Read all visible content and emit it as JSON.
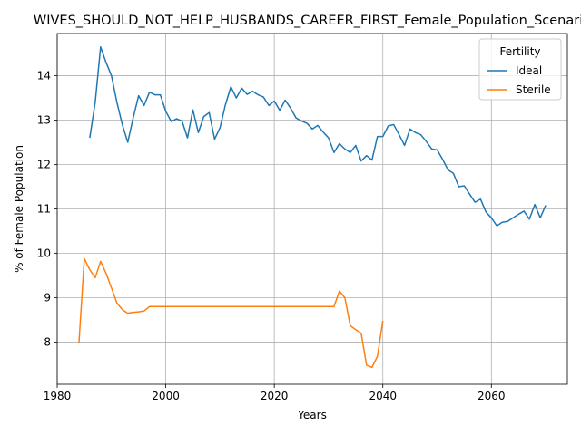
{
  "chart_data": {
    "type": "line",
    "title": "WIVES_SHOULD_NOT_HELP_HUSBANDS_CAREER_FIRST_Female_Population_Scenario",
    "xlabel": "Years",
    "ylabel": "% of Female Population",
    "xlim": [
      1980,
      2074
    ],
    "ylim": [
      7.05,
      14.95
    ],
    "xticks": [
      1980,
      2000,
      2020,
      2040,
      2060
    ],
    "yticks": [
      8,
      9,
      10,
      11,
      12,
      13,
      14
    ],
    "grid": true,
    "legend": {
      "title": "Fertility",
      "placement": "top-right"
    },
    "series": [
      {
        "name": "Ideal",
        "color": "#1f77b4",
        "x": [
          1986,
          1987,
          1988,
          1989,
          1990,
          1991,
          1992,
          1993,
          1994,
          1995,
          1996,
          1997,
          1998,
          1999,
          2000,
          2001,
          2002,
          2003,
          2004,
          2005,
          2006,
          2007,
          2008,
          2009,
          2010,
          2011,
          2012,
          2013,
          2014,
          2015,
          2016,
          2017,
          2018,
          2019,
          2020,
          2021,
          2022,
          2023,
          2024,
          2025,
          2026,
          2027,
          2028,
          2029,
          2030,
          2031,
          2032,
          2033,
          2034,
          2035,
          2036,
          2037,
          2038,
          2039,
          2040,
          2041,
          2042,
          2043,
          2044,
          2045,
          2046,
          2047,
          2048,
          2049,
          2050,
          2051,
          2052,
          2053,
          2054,
          2055,
          2056,
          2057,
          2058,
          2059,
          2060,
          2061,
          2062,
          2063,
          2064,
          2065,
          2066,
          2067,
          2068,
          2069,
          2070
        ],
        "values": [
          12.6,
          13.4,
          14.65,
          14.3,
          14.0,
          13.4,
          12.9,
          12.5,
          13.05,
          13.55,
          13.33,
          13.63,
          13.57,
          13.57,
          13.2,
          12.97,
          13.03,
          12.98,
          12.6,
          13.23,
          12.72,
          13.08,
          13.17,
          12.57,
          12.83,
          13.35,
          13.75,
          13.5,
          13.72,
          13.58,
          13.65,
          13.57,
          13.52,
          13.33,
          13.43,
          13.22,
          13.45,
          13.27,
          13.05,
          12.98,
          12.93,
          12.8,
          12.88,
          12.73,
          12.6,
          12.27,
          12.47,
          12.35,
          12.27,
          12.43,
          12.08,
          12.2,
          12.1,
          12.63,
          12.63,
          12.87,
          12.9,
          12.67,
          12.43,
          12.8,
          12.72,
          12.67,
          12.52,
          12.35,
          12.33,
          12.12,
          11.88,
          11.8,
          11.5,
          11.52,
          11.33,
          11.15,
          11.22,
          10.93,
          10.8,
          10.62,
          10.7,
          10.72,
          10.8,
          10.88,
          10.95,
          10.77,
          11.1,
          10.8,
          11.08
        ]
      },
      {
        "name": "Sterile",
        "color": "#ff7f0e",
        "x": [
          1984,
          1985,
          1986,
          1987,
          1988,
          1989,
          1990,
          1991,
          1992,
          1993,
          1994,
          1995,
          1996,
          1997,
          1998,
          1999,
          2000,
          2001,
          2002,
          2003,
          2004,
          2005,
          2006,
          2007,
          2008,
          2009,
          2010,
          2011,
          2012,
          2013,
          2014,
          2015,
          2016,
          2017,
          2018,
          2019,
          2020,
          2021,
          2022,
          2023,
          2024,
          2025,
          2026,
          2027,
          2028,
          2029,
          2030,
          2031,
          2032,
          2033,
          2034,
          2035,
          2036,
          2037,
          2038,
          2039,
          2040
        ],
        "values": [
          7.97,
          9.88,
          9.63,
          9.45,
          9.82,
          9.55,
          9.22,
          8.88,
          8.73,
          8.65,
          8.67,
          8.68,
          8.7,
          8.8,
          8.8,
          8.8,
          8.8,
          8.8,
          8.8,
          8.8,
          8.8,
          8.8,
          8.8,
          8.8,
          8.8,
          8.8,
          8.8,
          8.8,
          8.8,
          8.8,
          8.8,
          8.8,
          8.8,
          8.8,
          8.8,
          8.8,
          8.8,
          8.8,
          8.8,
          8.8,
          8.8,
          8.8,
          8.8,
          8.8,
          8.8,
          8.8,
          8.8,
          8.8,
          9.15,
          9.0,
          8.37,
          8.28,
          8.2,
          7.48,
          7.43,
          7.68,
          8.48
        ]
      }
    ]
  }
}
